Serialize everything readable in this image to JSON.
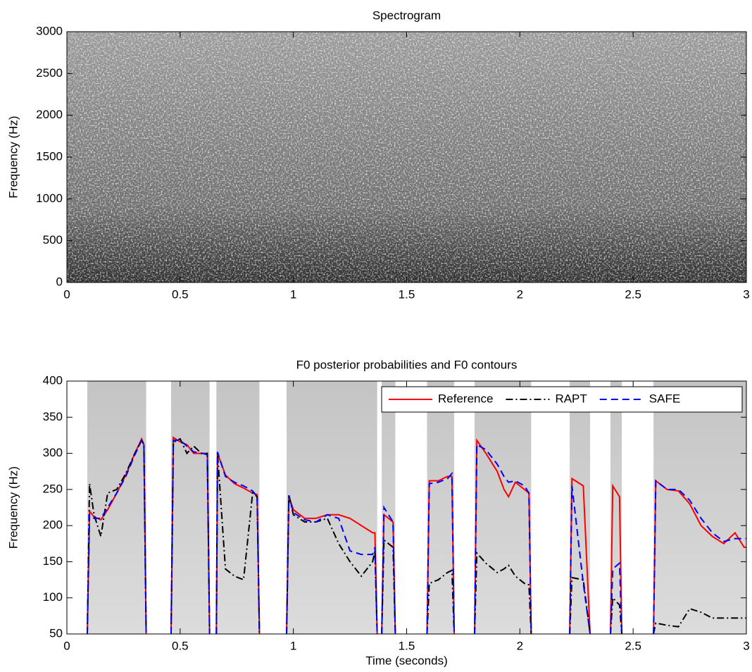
{
  "chart_data": [
    {
      "type": "image",
      "title": "Spectrogram",
      "ylabel": "Frequency (Hz)",
      "xlim": [
        0,
        3
      ],
      "xticks": [
        0,
        0.5,
        1,
        1.5,
        2,
        2.5,
        3
      ],
      "ylim": [
        0,
        3000
      ],
      "yticks": [
        0,
        500,
        1000,
        1500,
        2000,
        2500,
        3000
      ]
    },
    {
      "type": "line",
      "title": "F0 posterior probabilities and F0 contours",
      "xlabel": "Time (seconds)",
      "ylabel": "Frequency (Hz)",
      "xlim": [
        0,
        3
      ],
      "xticks": [
        0,
        0.5,
        1,
        1.5,
        2,
        2.5,
        3
      ],
      "ylim": [
        50,
        400
      ],
      "yticks": [
        50,
        100,
        150,
        200,
        250,
        300,
        350,
        400
      ],
      "legend": "upper right",
      "x": [
        0.09,
        0.1,
        0.12,
        0.15,
        0.18,
        0.22,
        0.26,
        0.3,
        0.33,
        0.34,
        0.35,
        0.4,
        0.46,
        0.47,
        0.5,
        0.53,
        0.56,
        0.6,
        0.62,
        0.63,
        0.645,
        0.66,
        0.665,
        0.7,
        0.74,
        0.78,
        0.82,
        0.84,
        0.85,
        0.9,
        0.97,
        0.98,
        1.0,
        1.05,
        1.1,
        1.15,
        1.2,
        1.25,
        1.3,
        1.35,
        1.36,
        1.37,
        1.38,
        1.39,
        1.4,
        1.44,
        1.45,
        1.52,
        1.59,
        1.6,
        1.64,
        1.68,
        1.7,
        1.71,
        1.75,
        1.8,
        1.81,
        1.85,
        1.9,
        1.93,
        1.95,
        1.98,
        2.02,
        2.04,
        2.05,
        2.13,
        2.22,
        2.23,
        2.28,
        2.31,
        2.35,
        2.4,
        2.41,
        2.44,
        2.45,
        2.52,
        2.59,
        2.6,
        2.65,
        2.7,
        2.75,
        2.8,
        2.85,
        2.9,
        2.95,
        2.99,
        3.0
      ],
      "series": [
        {
          "name": "Reference",
          "color": "#ff0000",
          "dash": "solid",
          "values": [
            50,
            220,
            212,
            208,
            222,
            245,
            270,
            300,
            320,
            312,
            50,
            null,
            50,
            322,
            316,
            312,
            300,
            300,
            300,
            50,
            null,
            50,
            300,
            270,
            258,
            252,
            245,
            243,
            50,
            null,
            50,
            240,
            222,
            210,
            210,
            215,
            215,
            210,
            200,
            190,
            190,
            50,
            null,
            50,
            215,
            205,
            50,
            null,
            50,
            262,
            262,
            268,
            268,
            50,
            null,
            50,
            318,
            300,
            275,
            250,
            240,
            260,
            250,
            245,
            50,
            null,
            50,
            265,
            255,
            50,
            null,
            50,
            255,
            240,
            50,
            null,
            50,
            262,
            250,
            248,
            230,
            200,
            185,
            175,
            190,
            170,
            170
          ]
        },
        {
          "name": "RAPT",
          "color": "#000000",
          "dash": "dashdot",
          "values": [
            50,
            258,
            215,
            185,
            245,
            250,
            272,
            300,
            318,
            312,
            50,
            null,
            50,
            315,
            320,
            300,
            310,
            298,
            300,
            50,
            null,
            50,
            300,
            140,
            130,
            125,
            245,
            240,
            50,
            null,
            50,
            243,
            215,
            205,
            205,
            210,
            175,
            150,
            130,
            150,
            165,
            50,
            null,
            50,
            180,
            170,
            50,
            null,
            50,
            120,
            125,
            135,
            138,
            50,
            null,
            50,
            162,
            148,
            135,
            140,
            145,
            130,
            120,
            118,
            50,
            null,
            50,
            128,
            125,
            50,
            null,
            50,
            100,
            90,
            50,
            null,
            50,
            65,
            62,
            60,
            85,
            80,
            72,
            72,
            72,
            72,
            72
          ]
        },
        {
          "name": "SAFE",
          "color": "#0000ff",
          "dash": "dashed",
          "values": [
            50,
            215,
            210,
            210,
            225,
            245,
            268,
            298,
            318,
            313,
            50,
            null,
            50,
            318,
            318,
            310,
            302,
            300,
            298,
            50,
            null,
            50,
            302,
            268,
            260,
            255,
            248,
            240,
            50,
            null,
            50,
            242,
            218,
            208,
            205,
            215,
            210,
            165,
            160,
            160,
            170,
            50,
            null,
            50,
            225,
            205,
            50,
            null,
            50,
            258,
            260,
            265,
            272,
            50,
            null,
            50,
            312,
            305,
            285,
            268,
            260,
            262,
            255,
            245,
            50,
            null,
            50,
            255,
            120,
            50,
            null,
            50,
            140,
            148,
            50,
            null,
            50,
            262,
            250,
            250,
            235,
            210,
            190,
            178,
            182,
            182,
            182
          ]
        }
      ]
    }
  ]
}
